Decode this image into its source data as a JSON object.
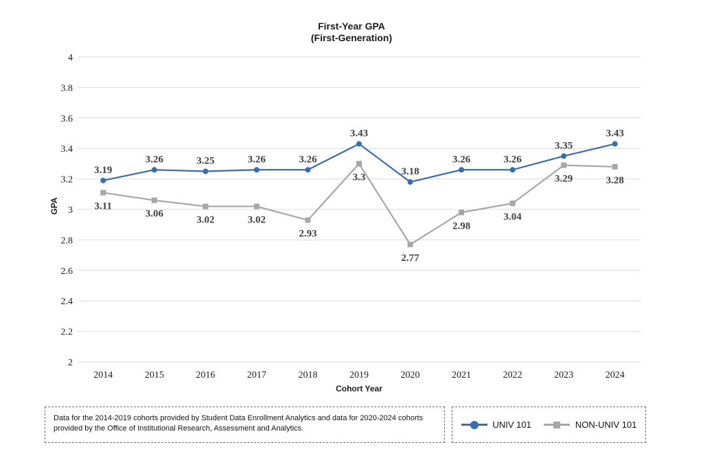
{
  "title": {
    "line1": "First-Year GPA",
    "line2": "(First-Generation)"
  },
  "chart_data": {
    "type": "line",
    "title": "First-Year GPA",
    "subtitle": "(First-Generation)",
    "categories": [
      "2014",
      "2015",
      "2016",
      "2017",
      "2018",
      "2019",
      "2020",
      "2021",
      "2022",
      "2023",
      "2024"
    ],
    "series": [
      {
        "name": "UNIV 101",
        "color": "#3a6baa",
        "marker": "circle",
        "label_position": "above",
        "values": [
          3.19,
          3.26,
          3.25,
          3.26,
          3.26,
          3.43,
          3.18,
          3.26,
          3.26,
          3.35,
          3.43
        ]
      },
      {
        "name": "NON-UNIV 101",
        "color": "#a6a6a6",
        "marker": "square",
        "label_position": "below",
        "values": [
          3.11,
          3.06,
          3.02,
          3.02,
          2.93,
          3.3,
          2.77,
          2.98,
          3.04,
          3.29,
          3.28
        ]
      }
    ],
    "xlabel": "Cohort Year",
    "ylabel": "GPA",
    "ylim": [
      2,
      4
    ],
    "ytick_step": 0.2,
    "yticks": [
      "2",
      "2.2",
      "2.4",
      "2.6",
      "2.8",
      "3",
      "3.2",
      "3.4",
      "3.6",
      "3.8",
      "4"
    ],
    "grid": true,
    "grid_color": "#d9d9d9",
    "data_label_color": "#404040",
    "legend_position": "bottom-right"
  },
  "footnote": {
    "text": "Data for the 2014-2019 cohorts provided by Student Data Enrollment Analytics and data for 2020-2024 cohorts provided by the Office of Institutional Research, Assessment and Analytics."
  },
  "legend": {
    "items": [
      {
        "label": "UNIV 101",
        "color": "#3a6baa",
        "marker": "circle"
      },
      {
        "label": "NON-UNIV 101",
        "color": "#a6a6a6",
        "marker": "square"
      }
    ]
  }
}
